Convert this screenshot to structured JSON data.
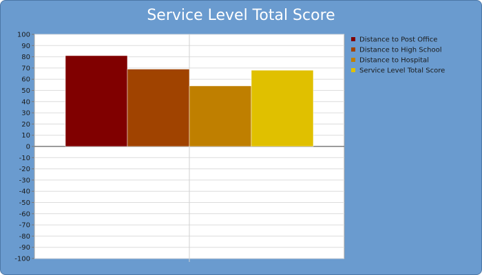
{
  "chart_data": {
    "type": "bar",
    "title": "Service Level Total Score",
    "categories": [
      ""
    ],
    "series": [
      {
        "name": "Distance to Post Office",
        "values": [
          81
        ],
        "color": "#800000"
      },
      {
        "name": "Distance to High School",
        "values": [
          69
        ],
        "color": "#a04300"
      },
      {
        "name": "Distance to Hospital",
        "values": [
          54
        ],
        "color": "#bf7f00"
      },
      {
        "name": "Service Level Total Score",
        "values": [
          68
        ],
        "color": "#e0c000"
      }
    ],
    "ylim": [
      -100,
      100
    ],
    "yticks": [
      "100",
      "90",
      "80",
      "70",
      "60",
      "50",
      "40",
      "30",
      "20",
      "10",
      "0",
      "-10",
      "-20",
      "-30",
      "-40",
      "-50",
      "-60",
      "-70",
      "-80",
      "-90",
      "-100"
    ],
    "grid": true,
    "legend": "top-right"
  }
}
